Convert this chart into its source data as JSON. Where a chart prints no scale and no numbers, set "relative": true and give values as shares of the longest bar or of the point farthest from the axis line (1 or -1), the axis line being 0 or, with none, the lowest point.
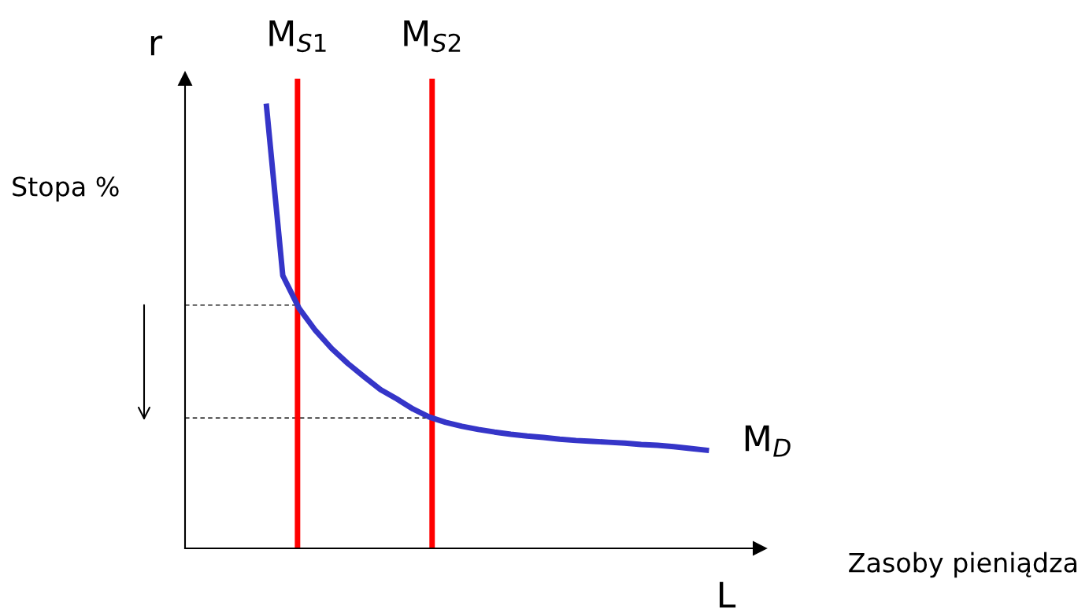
{
  "chart_data": {
    "type": "line",
    "relative": true,
    "ylabel": "Stopa %",
    "legend": false,
    "marker": "none",
    "annotations": [
      "r",
      "L",
      "Zasoby pieniądza",
      "M$_{S1}$",
      "M$_{S2}$"
    ],
    "categories": [
      null,
      null,
      null,
      null,
      null,
      null,
      null,
      null,
      null,
      null,
      null,
      null,
      null,
      null,
      null,
      null,
      null,
      null,
      null,
      null,
      null,
      null,
      null,
      null,
      null,
      null,
      null,
      null,
      null,
      null,
      null,
      null,
      null
    ],
    "series": [
      {
        "name": "M$_{D}$",
        "color": "#3535c8",
        "values": [
          null,
          null,
          null,
          null,
          null,
          1.0,
          0.617,
          0.543,
          0.493,
          0.452,
          0.418,
          0.388,
          0.359,
          0.338,
          0.315,
          0.297,
          0.285,
          0.276,
          0.269,
          0.263,
          0.258,
          0.254,
          0.251,
          0.247,
          0.244,
          0.242,
          0.24,
          0.238,
          0.235,
          0.233,
          0.23,
          0.226,
          0.222
        ]
      }
    ],
    "ref_lines": [
      {
        "axis": "y",
        "value": 0.55,
        "color": "#000000",
        "line_style": "dashed"
      },
      {
        "axis": "y",
        "value": 0.295,
        "color": "#000000",
        "line_style": "dashed"
      }
    ]
  }
}
